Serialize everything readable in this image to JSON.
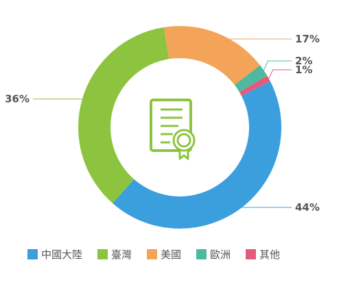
{
  "chart_data": {
    "type": "pie",
    "categories": [
      "中國大陸",
      "臺灣",
      "美國",
      "歐洲",
      "其他"
    ],
    "values": [
      44,
      36,
      17,
      2,
      1
    ],
    "value_labels": [
      "44%",
      "36%",
      "17%",
      "2%",
      "1%"
    ],
    "colors": [
      "#3a9fdc",
      "#8cc43f",
      "#f4a458",
      "#4fb99f",
      "#e45a7c"
    ],
    "legend_position": "bottom",
    "donut": true,
    "center_icon": "certificate-icon",
    "accent_icon_color": "#8cc43f"
  }
}
